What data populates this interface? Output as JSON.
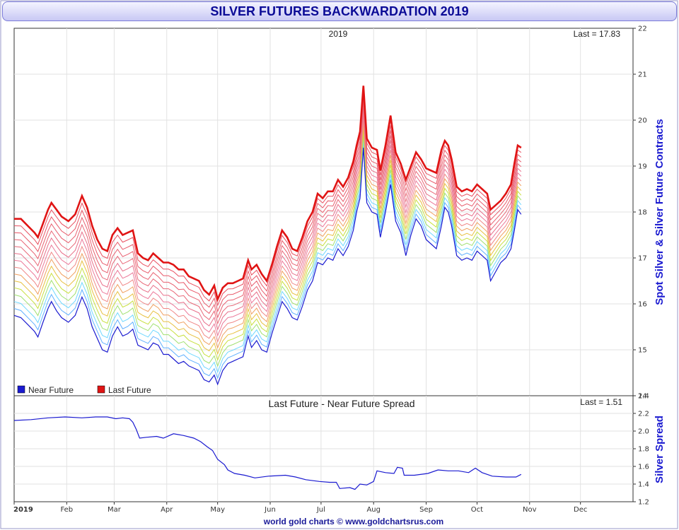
{
  "title": "SILVER FUTURES BACKWARDATION 2019",
  "footer": "world gold charts © www.goldchartsrus.com",
  "chart_data": [
    {
      "type": "line",
      "year_label": "2019",
      "last_label": "Last = 17.83",
      "ylabel": "Spot Silver & Silver Future Contracts",
      "ylim": [
        14,
        22
      ],
      "yticks": [
        "14",
        "15",
        "16",
        "17",
        "18",
        "19",
        "20",
        "21",
        "22"
      ],
      "legend_position": "bottom-left",
      "series": [
        {
          "name": "Near Future",
          "color": "#1a1ad0",
          "points": [
            [
              0,
              15.75
            ],
            [
              4,
              15.7
            ],
            [
              8,
              15.55
            ],
            [
              12,
              15.4
            ],
            [
              14,
              15.28
            ],
            [
              17,
              15.6
            ],
            [
              20,
              15.9
            ],
            [
              22,
              16.05
            ],
            [
              25,
              15.85
            ],
            [
              28,
              15.7
            ],
            [
              32,
              15.6
            ],
            [
              36,
              15.75
            ],
            [
              40,
              16.15
            ],
            [
              43,
              15.9
            ],
            [
              46,
              15.5
            ],
            [
              49,
              15.25
            ],
            [
              52,
              15.0
            ],
            [
              55,
              14.95
            ],
            [
              58,
              15.3
            ],
            [
              61,
              15.5
            ],
            [
              64,
              15.3
            ],
            [
              67,
              15.35
            ],
            [
              70,
              15.45
            ],
            [
              73,
              15.1
            ],
            [
              76,
              15.05
            ],
            [
              79,
              15.0
            ],
            [
              82,
              15.15
            ],
            [
              85,
              15.1
            ],
            [
              88,
              14.9
            ],
            [
              91,
              14.9
            ],
            [
              94,
              14.8
            ],
            [
              97,
              14.7
            ],
            [
              100,
              14.75
            ],
            [
              103,
              14.65
            ],
            [
              106,
              14.6
            ],
            [
              109,
              14.55
            ],
            [
              112,
              14.35
            ],
            [
              115,
              14.3
            ],
            [
              118,
              14.45
            ],
            [
              120,
              14.25
            ],
            [
              123,
              14.55
            ],
            [
              126,
              14.7
            ],
            [
              129,
              14.75
            ],
            [
              132,
              14.8
            ],
            [
              135,
              14.85
            ],
            [
              138,
              15.3
            ],
            [
              140,
              15.05
            ],
            [
              143,
              15.2
            ],
            [
              146,
              15.0
            ],
            [
              149,
              14.95
            ],
            [
              152,
              15.35
            ],
            [
              155,
              15.7
            ],
            [
              158,
              16.05
            ],
            [
              161,
              15.9
            ],
            [
              164,
              15.7
            ],
            [
              167,
              15.65
            ],
            [
              170,
              15.95
            ],
            [
              173,
              16.3
            ],
            [
              176,
              16.5
            ],
            [
              179,
              16.9
            ],
            [
              182,
              16.85
            ],
            [
              185,
              17.0
            ],
            [
              188,
              16.95
            ],
            [
              191,
              17.2
            ],
            [
              194,
              17.05
            ],
            [
              197,
              17.25
            ],
            [
              200,
              17.6
            ],
            [
              202,
              18.0
            ],
            [
              204,
              18.3
            ],
            [
              206,
              19.4
            ],
            [
              208,
              18.2
            ],
            [
              211,
              18.0
            ],
            [
              214,
              17.95
            ],
            [
              216,
              17.45
            ],
            [
              219,
              18.0
            ],
            [
              222,
              18.6
            ],
            [
              225,
              17.8
            ],
            [
              228,
              17.55
            ],
            [
              231,
              17.05
            ],
            [
              234,
              17.5
            ],
            [
              237,
              17.85
            ],
            [
              240,
              17.7
            ],
            [
              243,
              17.4
            ],
            [
              246,
              17.3
            ],
            [
              249,
              17.2
            ],
            [
              252,
              17.7
            ],
            [
              254,
              18.1
            ],
            [
              256,
              18.0
            ],
            [
              258,
              17.7
            ],
            [
              261,
              17.05
            ],
            [
              264,
              16.95
            ],
            [
              267,
              17.0
            ],
            [
              270,
              16.95
            ],
            [
              273,
              17.15
            ],
            [
              276,
              17.05
            ],
            [
              279,
              16.95
            ],
            [
              281,
              16.5
            ],
            [
              284,
              16.7
            ],
            [
              287,
              16.9
            ],
            [
              290,
              17.0
            ],
            [
              293,
              17.2
            ],
            [
              295,
              17.6
            ],
            [
              297,
              18.05
            ],
            [
              299,
              17.95
            ]
          ]
        },
        {
          "name": "Last Future",
          "color": "#e01414",
          "points": [
            [
              0,
              17.85
            ],
            [
              4,
              17.85
            ],
            [
              8,
              17.7
            ],
            [
              12,
              17.55
            ],
            [
              14,
              17.45
            ],
            [
              17,
              17.75
            ],
            [
              20,
              18.05
            ],
            [
              22,
              18.2
            ],
            [
              25,
              18.05
            ],
            [
              28,
              17.9
            ],
            [
              32,
              17.8
            ],
            [
              36,
              17.95
            ],
            [
              40,
              18.35
            ],
            [
              43,
              18.1
            ],
            [
              46,
              17.7
            ],
            [
              49,
              17.4
            ],
            [
              52,
              17.2
            ],
            [
              55,
              17.15
            ],
            [
              58,
              17.5
            ],
            [
              61,
              17.65
            ],
            [
              64,
              17.5
            ],
            [
              67,
              17.55
            ],
            [
              70,
              17.6
            ],
            [
              73,
              17.1
            ],
            [
              76,
              17.0
            ],
            [
              79,
              16.95
            ],
            [
              82,
              17.1
            ],
            [
              85,
              17.0
            ],
            [
              88,
              16.9
            ],
            [
              91,
              16.9
            ],
            [
              94,
              16.85
            ],
            [
              97,
              16.75
            ],
            [
              100,
              16.75
            ],
            [
              103,
              16.6
            ],
            [
              106,
              16.55
            ],
            [
              109,
              16.5
            ],
            [
              112,
              16.3
            ],
            [
              115,
              16.2
            ],
            [
              118,
              16.4
            ],
            [
              120,
              16.1
            ],
            [
              123,
              16.35
            ],
            [
              126,
              16.45
            ],
            [
              129,
              16.45
            ],
            [
              132,
              16.5
            ],
            [
              135,
              16.55
            ],
            [
              138,
              16.95
            ],
            [
              140,
              16.75
            ],
            [
              143,
              16.85
            ],
            [
              146,
              16.65
            ],
            [
              149,
              16.5
            ],
            [
              152,
              16.85
            ],
            [
              155,
              17.25
            ],
            [
              158,
              17.6
            ],
            [
              161,
              17.45
            ],
            [
              164,
              17.2
            ],
            [
              167,
              17.15
            ],
            [
              170,
              17.45
            ],
            [
              173,
              17.8
            ],
            [
              176,
              18.0
            ],
            [
              179,
              18.4
            ],
            [
              182,
              18.3
            ],
            [
              185,
              18.45
            ],
            [
              188,
              18.45
            ],
            [
              191,
              18.7
            ],
            [
              194,
              18.55
            ],
            [
              197,
              18.75
            ],
            [
              200,
              19.1
            ],
            [
              202,
              19.45
            ],
            [
              204,
              19.75
            ],
            [
              206,
              20.75
            ],
            [
              208,
              19.6
            ],
            [
              211,
              19.4
            ],
            [
              214,
              19.35
            ],
            [
              216,
              18.9
            ],
            [
              219,
              19.45
            ],
            [
              222,
              20.1
            ],
            [
              225,
              19.3
            ],
            [
              228,
              19.05
            ],
            [
              231,
              18.7
            ],
            [
              234,
              19.0
            ],
            [
              237,
              19.3
            ],
            [
              240,
              19.15
            ],
            [
              243,
              18.95
            ],
            [
              246,
              18.9
            ],
            [
              249,
              18.85
            ],
            [
              252,
              19.35
            ],
            [
              254,
              19.55
            ],
            [
              256,
              19.45
            ],
            [
              258,
              19.15
            ],
            [
              261,
              18.55
            ],
            [
              264,
              18.45
            ],
            [
              267,
              18.5
            ],
            [
              270,
              18.45
            ],
            [
              273,
              18.6
            ],
            [
              276,
              18.5
            ],
            [
              279,
              18.4
            ],
            [
              281,
              18.05
            ],
            [
              284,
              18.15
            ],
            [
              287,
              18.25
            ],
            [
              290,
              18.4
            ],
            [
              293,
              18.6
            ],
            [
              295,
              19.05
            ],
            [
              297,
              19.45
            ],
            [
              299,
              19.4
            ]
          ]
        }
      ]
    },
    {
      "type": "line",
      "title": "Last Future - Near Future Spread",
      "last_label": "Last = 1.51",
      "ylabel": "Silver Spread",
      "ylim": [
        1.2,
        2.4
      ],
      "yticks": [
        "1.2",
        "1.4",
        "1.6",
        "1.8",
        "2.0",
        "2.2",
        "2.4"
      ],
      "series": [
        {
          "color": "#1a1ad0",
          "points": [
            [
              0,
              2.12
            ],
            [
              10,
              2.13
            ],
            [
              20,
              2.15
            ],
            [
              30,
              2.16
            ],
            [
              40,
              2.15
            ],
            [
              48,
              2.16
            ],
            [
              55,
              2.16
            ],
            [
              60,
              2.14
            ],
            [
              64,
              2.15
            ],
            [
              68,
              2.14
            ],
            [
              70,
              2.1
            ],
            [
              72,
              2.02
            ],
            [
              74,
              1.92
            ],
            [
              78,
              1.93
            ],
            [
              84,
              1.94
            ],
            [
              88,
              1.92
            ],
            [
              94,
              1.97
            ],
            [
              100,
              1.95
            ],
            [
              106,
              1.92
            ],
            [
              110,
              1.88
            ],
            [
              114,
              1.82
            ],
            [
              117,
              1.78
            ],
            [
              120,
              1.68
            ],
            [
              124,
              1.62
            ],
            [
              126,
              1.56
            ],
            [
              130,
              1.52
            ],
            [
              136,
              1.5
            ],
            [
              142,
              1.47
            ],
            [
              150,
              1.49
            ],
            [
              160,
              1.5
            ],
            [
              166,
              1.48
            ],
            [
              172,
              1.45
            ],
            [
              180,
              1.43
            ],
            [
              186,
              1.42
            ],
            [
              190,
              1.42
            ],
            [
              192,
              1.35
            ],
            [
              198,
              1.36
            ],
            [
              201,
              1.34
            ],
            [
              204,
              1.4
            ],
            [
              208,
              1.39
            ],
            [
              212,
              1.43
            ],
            [
              214,
              1.55
            ],
            [
              219,
              1.53
            ],
            [
              224,
              1.52
            ],
            [
              226,
              1.59
            ],
            [
              229,
              1.58
            ],
            [
              230,
              1.5
            ],
            [
              236,
              1.5
            ],
            [
              244,
              1.52
            ],
            [
              250,
              1.56
            ],
            [
              256,
              1.55
            ],
            [
              262,
              1.55
            ],
            [
              268,
              1.53
            ],
            [
              272,
              1.58
            ],
            [
              276,
              1.53
            ],
            [
              282,
              1.49
            ],
            [
              290,
              1.48
            ],
            [
              296,
              1.48
            ],
            [
              299,
              1.51
            ]
          ]
        }
      ]
    }
  ],
  "x_axis": {
    "tick_labels": [
      "2019",
      "Feb",
      "Mar",
      "Apr",
      "May",
      "Jun",
      "Jul",
      "Aug",
      "Sep",
      "Oct",
      "Nov",
      "Dec"
    ],
    "tick_days": [
      0,
      31,
      59,
      90,
      120,
      151,
      181,
      212,
      243,
      273,
      304,
      334
    ],
    "xlim": [
      0,
      365
    ]
  },
  "band_colors": [
    "#1a1ad0",
    "#5fb0ff",
    "#70d8ff",
    "#a0e070",
    "#c8e040",
    "#e8c040",
    "#f0a060",
    "#f08888",
    "#ec7a9a",
    "#e8708a",
    "#e86878",
    "#e86070",
    "#e85868",
    "#e85060"
  ]
}
